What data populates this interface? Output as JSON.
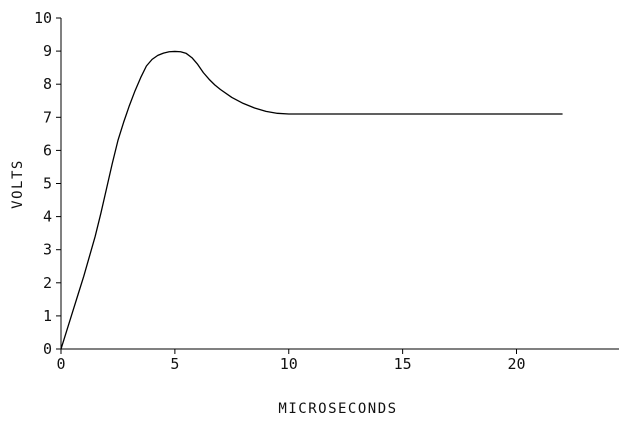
{
  "chart_data": {
    "type": "line",
    "title": "",
    "xlabel": "MICROSECONDS",
    "ylabel": "VOLTS",
    "xlim": [
      0,
      24.5
    ],
    "ylim": [
      0,
      10
    ],
    "xticks": [
      0,
      5,
      10,
      15,
      20
    ],
    "yticks": [
      0,
      1,
      2,
      3,
      4,
      5,
      6,
      7,
      8,
      9,
      10
    ],
    "grid": false,
    "legend": "none",
    "line_color": "#000000",
    "series": [
      {
        "x": [
          0,
          0.25,
          0.5,
          0.75,
          1.0,
          1.25,
          1.5,
          1.75,
          2.0,
          2.25,
          2.5,
          2.75,
          3.0,
          3.25,
          3.5,
          3.75,
          4.0,
          4.25,
          4.5,
          4.75,
          5.0,
          5.25,
          5.5,
          5.75,
          6.0,
          6.25,
          6.5,
          6.75,
          7.0,
          7.5,
          8.0,
          8.5,
          9.0,
          9.5,
          10.0,
          11.0,
          12.0,
          14.0,
          16.0,
          18.0,
          20.0,
          22.0
        ],
        "y": [
          0.0,
          0.55,
          1.1,
          1.65,
          2.2,
          2.8,
          3.4,
          4.1,
          4.85,
          5.6,
          6.3,
          6.85,
          7.35,
          7.8,
          8.2,
          8.55,
          8.75,
          8.87,
          8.94,
          8.98,
          8.99,
          8.98,
          8.93,
          8.8,
          8.6,
          8.35,
          8.15,
          7.98,
          7.84,
          7.6,
          7.42,
          7.28,
          7.18,
          7.12,
          7.1,
          7.1,
          7.1,
          7.1,
          7.1,
          7.1,
          7.1,
          7.1
        ]
      }
    ]
  }
}
